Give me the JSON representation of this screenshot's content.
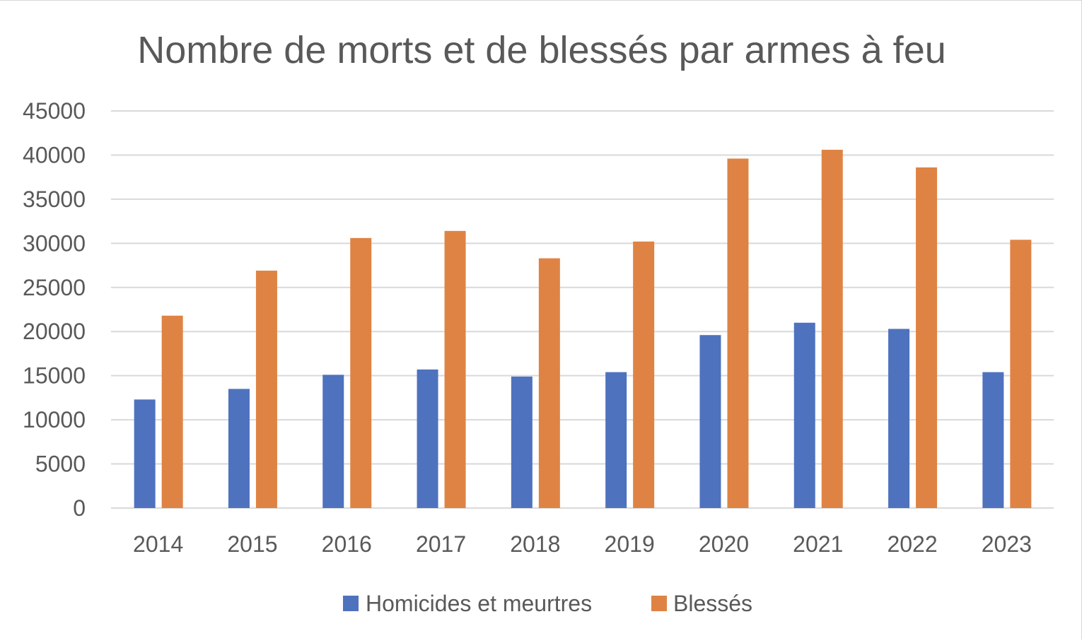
{
  "chart_data": {
    "type": "bar",
    "title": "Nombre de morts et de blessés par armes à feu",
    "xlabel": "",
    "ylabel": "",
    "categories": [
      "2014",
      "2015",
      "2016",
      "2017",
      "2018",
      "2019",
      "2020",
      "2021",
      "2022",
      "2023"
    ],
    "series": [
      {
        "name": "Homicides et meurtres",
        "color": "#4E72BE",
        "values": [
          12300,
          13500,
          15100,
          15700,
          14900,
          15400,
          19600,
          21000,
          20300,
          15400
        ]
      },
      {
        "name": "Blessés",
        "color": "#DF8344",
        "values": [
          21800,
          26900,
          30600,
          31400,
          28300,
          30200,
          39600,
          40600,
          38600,
          30400
        ]
      }
    ],
    "ylim": [
      0,
      45000
    ],
    "yticks": [
      0,
      5000,
      10000,
      15000,
      20000,
      25000,
      30000,
      35000,
      40000,
      45000
    ],
    "grid": true,
    "legend_position": "bottom"
  }
}
